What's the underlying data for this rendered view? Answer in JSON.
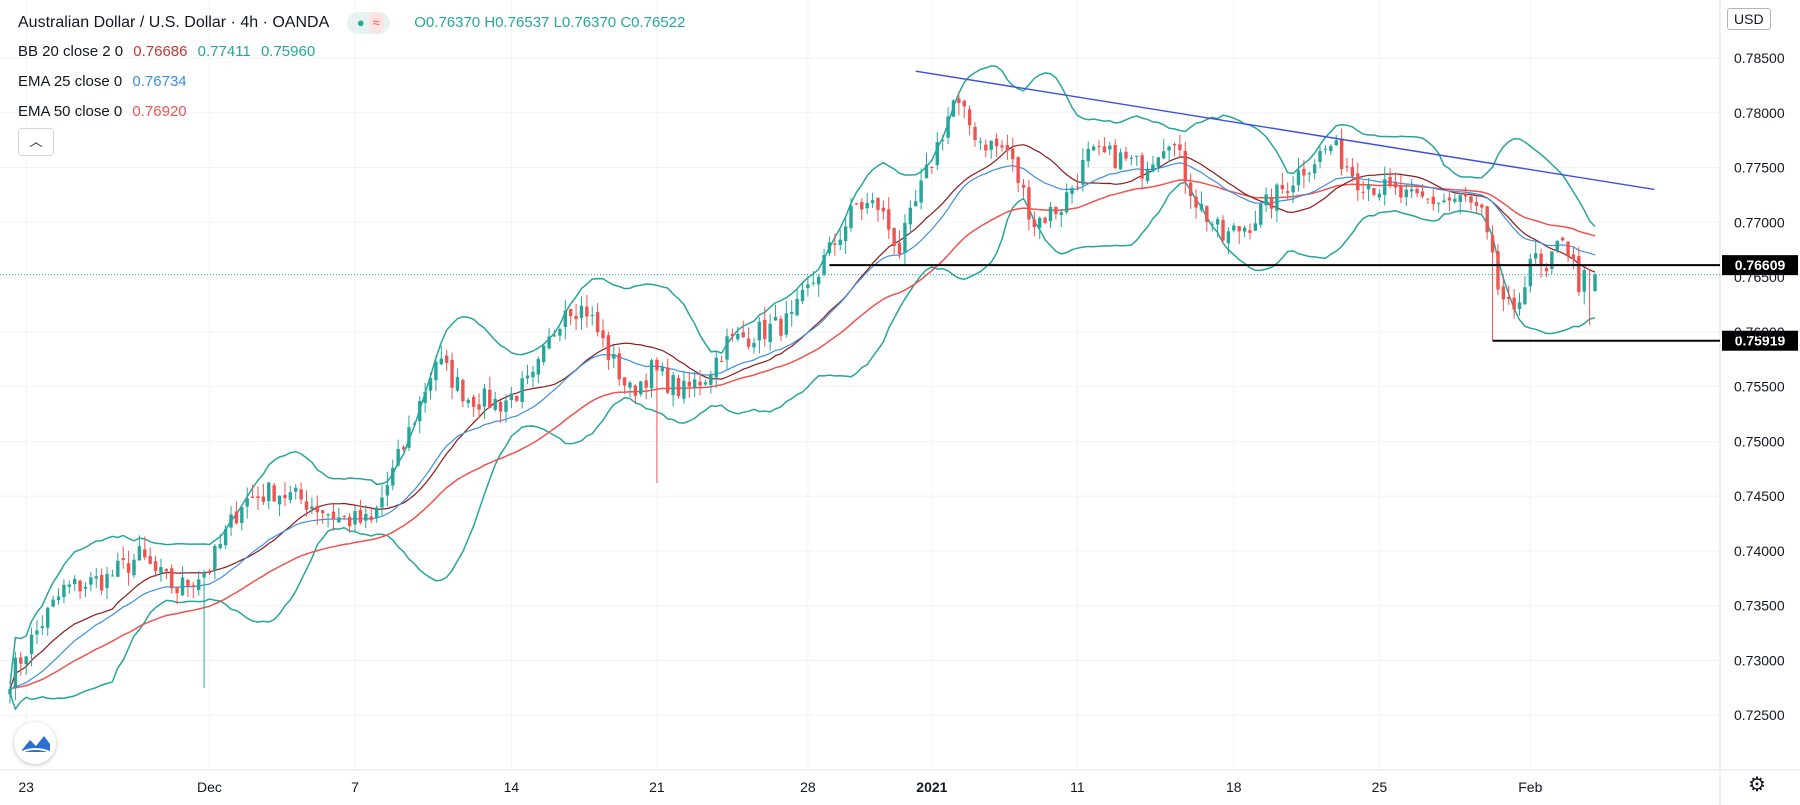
{
  "header": {
    "symbol": "Australian Dollar / U.S. Dollar",
    "interval": "4h",
    "broker": "OANDA",
    "ohlc": {
      "open": "O0.76370",
      "high": "H0.76537",
      "low": "L0.76370",
      "close": "C0.76522"
    },
    "indicators": [
      {
        "label": "BB 20 close 2 0",
        "values": [
          "0.76686",
          "0.77411",
          "0.75960"
        ]
      },
      {
        "label": "EMA 25 close 0",
        "values": [
          "0.76734"
        ]
      },
      {
        "label": "EMA 50 close 0",
        "values": [
          "0.76920"
        ]
      }
    ]
  },
  "currency": "USD",
  "icons": {
    "logo": "tradingview-logo-icon",
    "settings": "gear-icon",
    "collapse": "chevron-up-icon"
  },
  "colors": {
    "up": "#26a69a",
    "down": "#ef5350",
    "bb_band": "#26a69a",
    "bb_mid": "#8b1a1a",
    "ema25": "#3d8fe0",
    "ema50": "#ef5350",
    "trendline": "#3a50e0"
  },
  "chart_data": {
    "type": "candlestick",
    "title": "Australian Dollar / U.S. Dollar · 4h · OANDA",
    "ylim": [
      0.72,
      0.79
    ],
    "y_ticks": [
      "0.72500",
      "0.73000",
      "0.73500",
      "0.74000",
      "0.74500",
      "0.75000",
      "0.75500",
      "0.76000",
      "0.76500",
      "0.77000",
      "0.77500",
      "0.78000",
      "0.78500"
    ],
    "x_ticks": [
      "23",
      "Dec",
      "7",
      "14",
      "21",
      "28",
      "2021",
      "11",
      "18",
      "25",
      "Feb"
    ],
    "series_anchors": [
      [
        0,
        0.7285
      ],
      [
        6,
        0.7335
      ],
      [
        10,
        0.7365
      ],
      [
        18,
        0.7375
      ],
      [
        24,
        0.7395
      ],
      [
        27,
        0.738
      ],
      [
        31,
        0.7365
      ],
      [
        37,
        0.7385
      ],
      [
        43,
        0.7445
      ],
      [
        49,
        0.7455
      ],
      [
        55,
        0.7445
      ],
      [
        61,
        0.743
      ],
      [
        67,
        0.7425
      ],
      [
        73,
        0.7495
      ],
      [
        79,
        0.7575
      ],
      [
        85,
        0.754
      ],
      [
        91,
        0.7535
      ],
      [
        97,
        0.7555
      ],
      [
        103,
        0.7625
      ],
      [
        107,
        0.762
      ],
      [
        111,
        0.758
      ],
      [
        115,
        0.7545
      ],
      [
        119,
        0.7565
      ],
      [
        125,
        0.7545
      ],
      [
        129,
        0.756
      ],
      [
        133,
        0.759
      ],
      [
        139,
        0.76
      ],
      [
        145,
        0.761
      ],
      [
        151,
        0.7665
      ],
      [
        157,
        0.7715
      ],
      [
        161,
        0.7715
      ],
      [
        165,
        0.7675
      ],
      [
        169,
        0.773
      ],
      [
        175,
        0.781
      ],
      [
        180,
        0.7775
      ],
      [
        185,
        0.7765
      ],
      [
        190,
        0.77
      ],
      [
        195,
        0.7715
      ],
      [
        200,
        0.776
      ],
      [
        205,
        0.776
      ],
      [
        210,
        0.775
      ],
      [
        215,
        0.778
      ],
      [
        220,
        0.772
      ],
      [
        225,
        0.7685
      ],
      [
        230,
        0.77
      ],
      [
        235,
        0.7725
      ],
      [
        240,
        0.775
      ],
      [
        245,
        0.777
      ],
      [
        250,
        0.774
      ],
      [
        255,
        0.773
      ],
      [
        260,
        0.772
      ],
      [
        265,
        0.772
      ],
      [
        270,
        0.772
      ],
      [
        273,
        0.7705
      ],
      [
        276,
        0.764
      ],
      [
        279,
        0.761
      ],
      [
        282,
        0.767
      ],
      [
        285,
        0.765
      ],
      [
        288,
        0.769
      ],
      [
        291,
        0.7645
      ],
      [
        294,
        0.7652
      ]
    ],
    "daily_bar_count": 295,
    "candles_source": "interpolated from series_anchors with noise; last close 0.76522",
    "overlays": [
      {
        "name": "BB 20 upper",
        "values_last": 0.77411
      },
      {
        "name": "BB 20 basis",
        "values_last": 0.76686
      },
      {
        "name": "BB 20 lower",
        "values_last": 0.7596
      },
      {
        "name": "EMA 25",
        "values_last": 0.76734
      },
      {
        "name": "EMA 50",
        "values_last": 0.7692
      }
    ],
    "horizontal_levels": [
      {
        "value": 0.76609,
        "label": "0.76609",
        "from_index": 152
      },
      {
        "value": 0.75919,
        "label": "0.75919",
        "from_index": 275
      }
    ],
    "trendline": {
      "from": [
        168,
        0.7838
      ],
      "to": [
        305,
        0.773
      ]
    },
    "last_price_line": 0.76522
  }
}
